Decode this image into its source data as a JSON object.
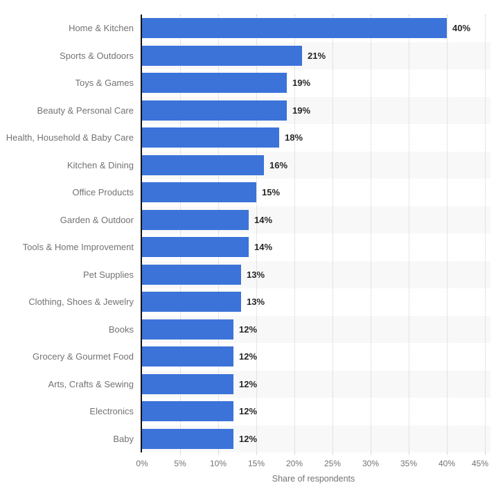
{
  "chart_data": {
    "type": "bar",
    "orientation": "horizontal",
    "title": "",
    "xlabel": "Share of respondents",
    "ylabel": "",
    "xlim": [
      0,
      45
    ],
    "grid": "vertical dotted gridlines every 5%",
    "legend": "none",
    "row_bands": "alternating white / light grey behind plot area",
    "categories": [
      "Home & Kitchen",
      "Sports & Outdoors",
      "Toys & Games",
      "Beauty & Personal Care",
      "Health, Household & Baby Care",
      "Kitchen & Dining",
      "Office Products",
      "Garden & Outdoor",
      "Tools & Home Improvement",
      "Pet Supplies",
      "Clothing, Shoes & Jewelry",
      "Books",
      "Grocery & Gourmet Food",
      "Arts, Crafts & Sewing",
      "Electronics",
      "Baby"
    ],
    "values": [
      40,
      21,
      19,
      19,
      18,
      16,
      15,
      14,
      14,
      13,
      13,
      12,
      12,
      12,
      12,
      12
    ],
    "value_labels": [
      "40%",
      "21%",
      "19%",
      "19%",
      "18%",
      "16%",
      "15%",
      "14%",
      "14%",
      "13%",
      "13%",
      "12%",
      "12%",
      "12%",
      "12%",
      "12%"
    ],
    "x_tick_values": [
      0,
      5,
      10,
      15,
      20,
      25,
      30,
      35,
      40,
      45
    ],
    "x_ticks": [
      "0%",
      "5%",
      "10%",
      "15%",
      "20%",
      "25%",
      "30%",
      "35%",
      "40%",
      "45%"
    ],
    "colors": {
      "bar": "#3B73D9",
      "row_band": "#F8F8F8",
      "gridline": "#CCCCCC",
      "axis_line": "#111111",
      "category_label": "#737373",
      "value_label": "#262626",
      "tick_label": "#737373",
      "axis_title": "#737373",
      "background": "#FFFFFF"
    }
  }
}
